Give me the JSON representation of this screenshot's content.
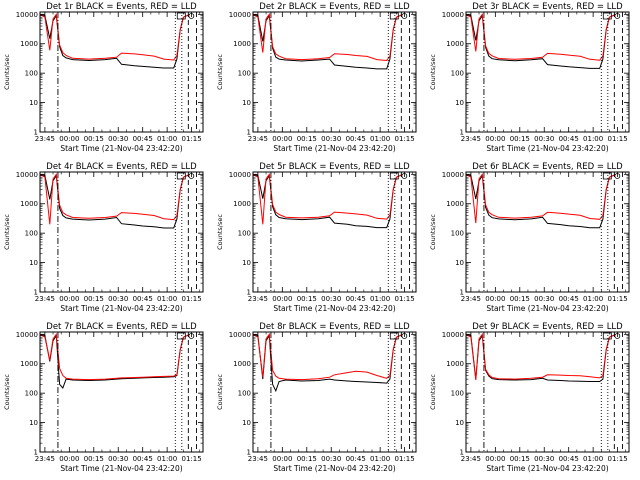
{
  "common": {
    "xlabel": "Start Time (21-Nov-04 23:42:20)",
    "ylabel": "Counts/sec",
    "x_tick_labels": [
      "23:45",
      "00:00",
      "00:15",
      "00:30",
      "00:45",
      "01:00",
      "01:15"
    ],
    "x_tick_minutes": [
      3,
      18,
      33,
      48,
      63,
      78,
      93
    ],
    "y_tick_labels": [
      "1",
      "10",
      "100",
      "1000",
      "10000"
    ],
    "y_tick_values": [
      1,
      10,
      100,
      1000,
      10000
    ],
    "xlim_minutes": [
      0,
      100
    ],
    "ylim": [
      1,
      12000
    ],
    "y_scale": "log",
    "colors": {
      "events": "#000000",
      "lld": "#ff0000",
      "frame": "#000000"
    },
    "vlines": [
      {
        "minute": 11,
        "style": "dashdot"
      },
      {
        "minute": 83,
        "style": "dotted"
      },
      {
        "minute": 87,
        "style": "dotted"
      },
      {
        "minute": 91,
        "style": "dashed"
      },
      {
        "minute": 96,
        "style": "dashed"
      }
    ]
  },
  "chart_data": [
    {
      "type": "line",
      "title": "Det 1r BLACK = Events, RED = LLD",
      "x_minutes": [
        0,
        3,
        6,
        8,
        10,
        12,
        14,
        16,
        20,
        30,
        40,
        47,
        50,
        58,
        63,
        70,
        76,
        82,
        84,
        86,
        88,
        92
      ],
      "series": [
        {
          "key": "events",
          "values": [
            10000,
            9000,
            1500,
            6000,
            9000,
            800,
            400,
            330,
            290,
            270,
            290,
            320,
            200,
            180,
            170,
            160,
            150,
            150,
            300,
            3000,
            8000,
            10000
          ]
        },
        {
          "key": "lld",
          "values": [
            10000,
            8000,
            600,
            7000,
            10000,
            900,
            500,
            400,
            320,
            300,
            320,
            350,
            480,
            450,
            420,
            380,
            300,
            280,
            400,
            3000,
            8000,
            10000
          ]
        }
      ]
    },
    {
      "type": "line",
      "title": "Det 2r BLACK = Events, RED = LLD",
      "x_minutes": [
        0,
        3,
        6,
        8,
        10,
        12,
        14,
        16,
        20,
        30,
        40,
        47,
        50,
        58,
        63,
        70,
        76,
        82,
        84,
        86,
        88,
        92
      ],
      "series": [
        {
          "key": "events",
          "values": [
            10000,
            9000,
            1200,
            6000,
            9000,
            700,
            350,
            300,
            280,
            260,
            280,
            300,
            190,
            170,
            160,
            150,
            140,
            140,
            300,
            3000,
            8000,
            10000
          ]
        },
        {
          "key": "lld",
          "values": [
            10000,
            8000,
            500,
            7000,
            10000,
            800,
            450,
            380,
            310,
            290,
            310,
            340,
            460,
            430,
            400,
            370,
            290,
            270,
            380,
            3000,
            8000,
            10000
          ]
        }
      ]
    },
    {
      "type": "line",
      "title": "Det 3r BLACK = Events, RED = LLD",
      "x_minutes": [
        0,
        3,
        6,
        8,
        10,
        12,
        14,
        16,
        20,
        30,
        40,
        47,
        50,
        58,
        63,
        70,
        76,
        82,
        84,
        86,
        88,
        92
      ],
      "series": [
        {
          "key": "events",
          "values": [
            10000,
            9000,
            1300,
            6000,
            9000,
            750,
            380,
            310,
            285,
            265,
            285,
            310,
            195,
            175,
            165,
            155,
            145,
            145,
            300,
            3000,
            8000,
            10000
          ]
        },
        {
          "key": "lld",
          "values": [
            10000,
            8000,
            550,
            7000,
            10000,
            850,
            470,
            390,
            315,
            295,
            315,
            345,
            470,
            440,
            410,
            375,
            295,
            275,
            390,
            3000,
            8000,
            10000
          ]
        }
      ]
    },
    {
      "type": "line",
      "title": "Det 4r BLACK = Events, RED = LLD",
      "x_minutes": [
        0,
        3,
        6,
        8,
        10,
        12,
        14,
        16,
        20,
        30,
        40,
        47,
        50,
        58,
        63,
        70,
        76,
        82,
        84,
        86,
        88,
        92
      ],
      "series": [
        {
          "key": "events",
          "values": [
            10000,
            9000,
            1400,
            6000,
            9000,
            700,
            400,
            330,
            300,
            280,
            300,
            340,
            210,
            190,
            175,
            165,
            150,
            150,
            300,
            3000,
            8000,
            10000
          ]
        },
        {
          "key": "lld",
          "values": [
            10000,
            8000,
            200,
            7000,
            10000,
            900,
            500,
            420,
            340,
            320,
            340,
            380,
            500,
            470,
            440,
            400,
            310,
            290,
            400,
            3000,
            8000,
            10000
          ]
        }
      ]
    },
    {
      "type": "line",
      "title": "Det 5r BLACK = Events, RED = LLD",
      "x_minutes": [
        0,
        3,
        6,
        8,
        10,
        12,
        14,
        16,
        20,
        30,
        40,
        47,
        50,
        58,
        63,
        70,
        76,
        82,
        84,
        86,
        88,
        92
      ],
      "series": [
        {
          "key": "events",
          "values": [
            10000,
            9000,
            1500,
            6000,
            9000,
            800,
            420,
            340,
            310,
            290,
            310,
            350,
            220,
            200,
            180,
            170,
            155,
            155,
            300,
            3000,
            8000,
            10000
          ]
        },
        {
          "key": "lld",
          "values": [
            10000,
            8000,
            200,
            7000,
            10000,
            950,
            520,
            430,
            350,
            330,
            350,
            390,
            520,
            480,
            450,
            410,
            320,
            300,
            410,
            3000,
            8000,
            10000
          ]
        }
      ]
    },
    {
      "type": "line",
      "title": "Det 6r BLACK = Events, RED = LLD",
      "x_minutes": [
        0,
        3,
        6,
        8,
        10,
        12,
        14,
        16,
        20,
        30,
        40,
        47,
        50,
        58,
        63,
        70,
        76,
        82,
        84,
        86,
        88,
        92
      ],
      "series": [
        {
          "key": "events",
          "values": [
            10000,
            9000,
            1450,
            6000,
            9000,
            750,
            410,
            335,
            305,
            285,
            305,
            345,
            215,
            195,
            178,
            168,
            152,
            152,
            300,
            3000,
            8000,
            10000
          ]
        },
        {
          "key": "lld",
          "values": [
            10000,
            8000,
            220,
            7000,
            10000,
            920,
            510,
            425,
            345,
            325,
            345,
            385,
            510,
            475,
            445,
            405,
            315,
            295,
            405,
            3000,
            8000,
            10000
          ]
        }
      ]
    },
    {
      "type": "line",
      "title": "Det 7r BLACK = Events, RED = LLD",
      "x_minutes": [
        0,
        3,
        6,
        8,
        10,
        12,
        14,
        16,
        20,
        30,
        40,
        47,
        50,
        58,
        63,
        70,
        76,
        82,
        84,
        86,
        88,
        92
      ],
      "series": [
        {
          "key": "events",
          "values": [
            10000,
            9000,
            1200,
            6000,
            9000,
            200,
            150,
            300,
            280,
            270,
            280,
            300,
            310,
            320,
            330,
            340,
            350,
            360,
            400,
            3000,
            8000,
            10000
          ]
        },
        {
          "key": "lld",
          "values": [
            10000,
            8000,
            1300,
            7000,
            10000,
            700,
            400,
            320,
            300,
            290,
            300,
            320,
            330,
            340,
            350,
            360,
            370,
            380,
            420,
            3000,
            8000,
            10000
          ]
        }
      ]
    },
    {
      "type": "line",
      "title": "Det 8r BLACK = Events, RED = LLD",
      "x_minutes": [
        0,
        3,
        6,
        8,
        10,
        12,
        14,
        16,
        20,
        30,
        40,
        47,
        50,
        58,
        63,
        70,
        76,
        82,
        84,
        86,
        88,
        92
      ],
      "series": [
        {
          "key": "events",
          "values": [
            10000,
            9000,
            300,
            6000,
            9000,
            200,
            120,
            250,
            280,
            260,
            270,
            300,
            280,
            260,
            250,
            240,
            230,
            220,
            300,
            3000,
            8000,
            10000
          ]
        },
        {
          "key": "lld",
          "values": [
            10000,
            8000,
            350,
            7000,
            10000,
            600,
            380,
            320,
            300,
            290,
            310,
            350,
            420,
            500,
            560,
            520,
            400,
            320,
            400,
            3000,
            8000,
            10000
          ]
        }
      ]
    },
    {
      "type": "line",
      "title": "Det 9r BLACK = Events, RED = LLD",
      "x_minutes": [
        0,
        3,
        6,
        8,
        10,
        12,
        14,
        16,
        20,
        30,
        40,
        47,
        50,
        58,
        63,
        70,
        76,
        82,
        84,
        86,
        88,
        92
      ],
      "series": [
        {
          "key": "events",
          "values": [
            10000,
            9000,
            300,
            6000,
            9000,
            600,
            380,
            310,
            290,
            280,
            290,
            320,
            280,
            270,
            260,
            255,
            250,
            250,
            300,
            3000,
            8000,
            10000
          ]
        },
        {
          "key": "lld",
          "values": [
            10000,
            8000,
            280,
            7000,
            10000,
            650,
            420,
            340,
            310,
            300,
            320,
            350,
            420,
            410,
            400,
            390,
            360,
            330,
            400,
            3000,
            8000,
            10000
          ]
        }
      ]
    }
  ]
}
